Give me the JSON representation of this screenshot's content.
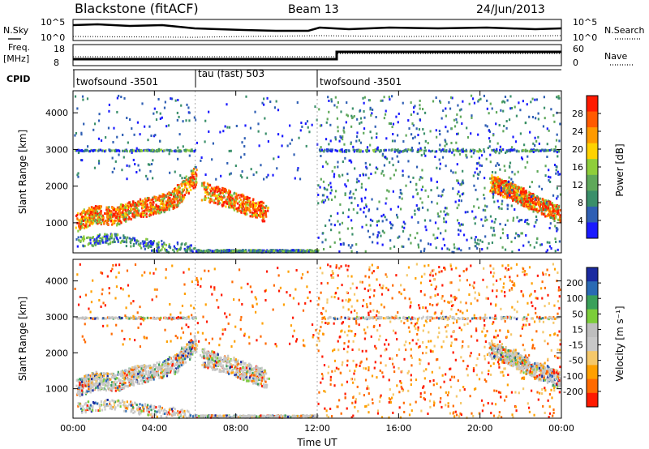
{
  "header": {
    "station": "Blackstone (fitACF)",
    "beam": "Beam 13",
    "date": "24/Jun/2013"
  },
  "panels": {
    "nsky": {
      "left_label": "N.Sky",
      "right_label": "N.Search",
      "left_ticks": [
        "10^5",
        "10^0"
      ],
      "right_ticks": [
        "10^5",
        "10^0"
      ]
    },
    "freq": {
      "left_label": "Freq.",
      "left_unit": "[MHz]",
      "left_ticks": [
        "18",
        "8"
      ],
      "right_ticks": [
        "60",
        "0"
      ],
      "right_label": "Nave"
    },
    "cpid": {
      "label": "CPID",
      "segments": [
        "twofsound -3501",
        "tau (fast) 503",
        "twofsound -3501"
      ]
    }
  },
  "colors": {
    "power_scale": [
      "#1a1aff",
      "#2f5fb4",
      "#3a8f6a",
      "#5fa85a",
      "#8fce3a",
      "#ffd200",
      "#ff9a00",
      "#ff5a00",
      "#ff1a00"
    ],
    "velocity_scale": [
      "#ff1a00",
      "#ff6a00",
      "#ffa000",
      "#f5c86a",
      "#c8c8c8",
      "#bebebe",
      "#7ccd3a",
      "#3aa05a",
      "#2a6ab4",
      "#1a2aa0"
    ]
  },
  "chart_data": [
    {
      "type": "heatmap",
      "name": "power",
      "ylabel": "Slant Range [km]",
      "xlabel": "",
      "ylim": [
        180,
        4600
      ],
      "yticks": [
        "1000",
        "2000",
        "3000",
        "4000"
      ],
      "xticks": [
        "00:00",
        "04:00",
        "08:00",
        "12:00",
        "16:00",
        "20:00",
        "00:00"
      ],
      "colorbar": {
        "label": "Power [dB]",
        "ticks": [
          "4",
          "8",
          "12",
          "16",
          "20",
          "24",
          "28"
        ]
      },
      "series": [
        {
          "x": [
            0.2,
            2.0,
            4.0,
            5.5
          ],
          "y": [
            1000,
            1250,
            1500,
            2000
          ]
        },
        {
          "x": [
            6.5,
            8.0,
            9.0
          ],
          "y": [
            1900,
            1600,
            1350
          ]
        },
        {
          "x": [
            21.0,
            22.5,
            24.0
          ],
          "y": [
            2050,
            1700,
            1250
          ]
        }
      ]
    },
    {
      "type": "heatmap",
      "name": "velocity",
      "ylabel": "Slant Range [km]",
      "xlabel": "Time UT",
      "ylim": [
        180,
        4600
      ],
      "yticks": [
        "1000",
        "2000",
        "3000",
        "4000"
      ],
      "xticks": [
        "00:00",
        "04:00",
        "08:00",
        "12:00",
        "16:00",
        "20:00",
        "00:00"
      ],
      "colorbar": {
        "label": "Velocity [m s⁻¹]",
        "ticks": [
          "200",
          "100",
          "50",
          "15",
          "-15",
          "-50",
          "-100",
          "-200"
        ]
      }
    }
  ]
}
